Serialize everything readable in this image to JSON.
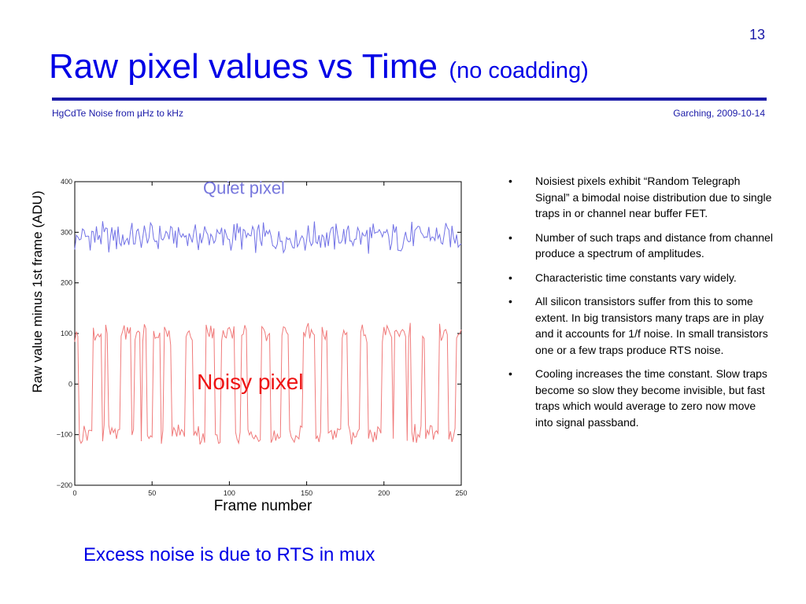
{
  "slide_number": "13",
  "title": {
    "main": "Raw pixel values  vs  Time",
    "sub": "(no coadding)"
  },
  "subheader": {
    "left": "HgCdTe Noise from µHz to kHz",
    "right": "Garching, 2009-10-14"
  },
  "chart_data": {
    "type": "line",
    "xlabel": "Frame number",
    "ylabel": "Raw value minus 1st frame (ADU)",
    "xlim": [
      0,
      250
    ],
    "ylim": [
      -200,
      400
    ],
    "x_ticks": [
      "0",
      "50",
      "100",
      "150",
      "200",
      "250"
    ],
    "y_ticks": [
      "400",
      "300",
      "200",
      "100",
      "0",
      "−100",
      "−200"
    ],
    "grid": false,
    "annotations": [
      {
        "text": "Quiet pixel",
        "color": "#7777dd"
      },
      {
        "text": "Noisy pixel",
        "color": "#ee1111"
      }
    ],
    "series": [
      {
        "name": "Quiet pixel",
        "color": "#7272e6",
        "level": 290,
        "spread": 45,
        "min": 232,
        "max": 330
      },
      {
        "name": "Noisy pixel",
        "color": "#f07a7a",
        "levels": [
          100,
          -100
        ],
        "spread": 50,
        "min": -165,
        "max": 140
      }
    ]
  },
  "bullets": [
    "Noisiest pixels exhibit “Random Telegraph Signal” a bimodal noise distribution due to single traps in or channel near buffer FET.",
    "Number of such traps and distance from channel produce a spectrum of amplitudes.",
    "Characteristic time constants vary widely.",
    "All silicon transistors suffer from this to some extent.  In big transistors many traps are in play and it accounts for 1/f noise.   In small transistors one or a few traps produce RTS noise.",
    "Cooling increases the time constant.  Slow traps become so slow they become invisible, but fast traps which would average to zero now move into signal passband."
  ],
  "footer": "Excess noise is due to RTS in mux"
}
